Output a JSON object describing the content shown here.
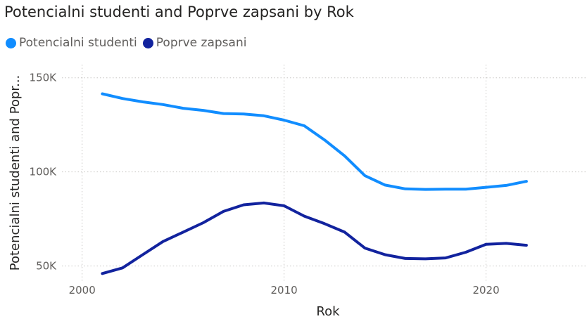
{
  "chart_data": {
    "type": "line",
    "title": "Potencialni studenti and Poprve zapsani by Rok",
    "xlabel": "Rok",
    "ylabel": "Potencialni studenti and Popr...",
    "xlim": [
      1999,
      2025
    ],
    "ylim": [
      42000,
      157000
    ],
    "x_ticks": [
      2000,
      2010,
      2020
    ],
    "y_ticks": [
      50000,
      100000,
      150000
    ],
    "x_tick_labels": [
      "2000",
      "2010",
      "2020"
    ],
    "y_tick_labels": [
      "50K",
      "100K",
      "150K"
    ],
    "grid": true,
    "legend_position": "top-left",
    "x": [
      2001,
      2002,
      2003,
      2004,
      2005,
      2006,
      2007,
      2008,
      2009,
      2010,
      2011,
      2012,
      2013,
      2014,
      2015,
      2016,
      2017,
      2018,
      2019,
      2020,
      2021,
      2022
    ],
    "series": [
      {
        "name": "Potencialni studenti",
        "color": "#118dff",
        "values": [
          141500,
          139000,
          137200,
          135800,
          133800,
          132700,
          131000,
          130800,
          129800,
          127500,
          124500,
          117000,
          108500,
          98000,
          93000,
          91000,
          90700,
          90800,
          90800,
          91800,
          92800,
          95000
        ]
      },
      {
        "name": "Poprve zapsani",
        "color": "#12239e",
        "values": [
          46000,
          49000,
          56000,
          63000,
          68000,
          73000,
          79000,
          82500,
          83500,
          82000,
          76500,
          72500,
          68000,
          59500,
          56000,
          54000,
          53800,
          54300,
          57300,
          61500,
          62000,
          61000
        ]
      }
    ]
  }
}
